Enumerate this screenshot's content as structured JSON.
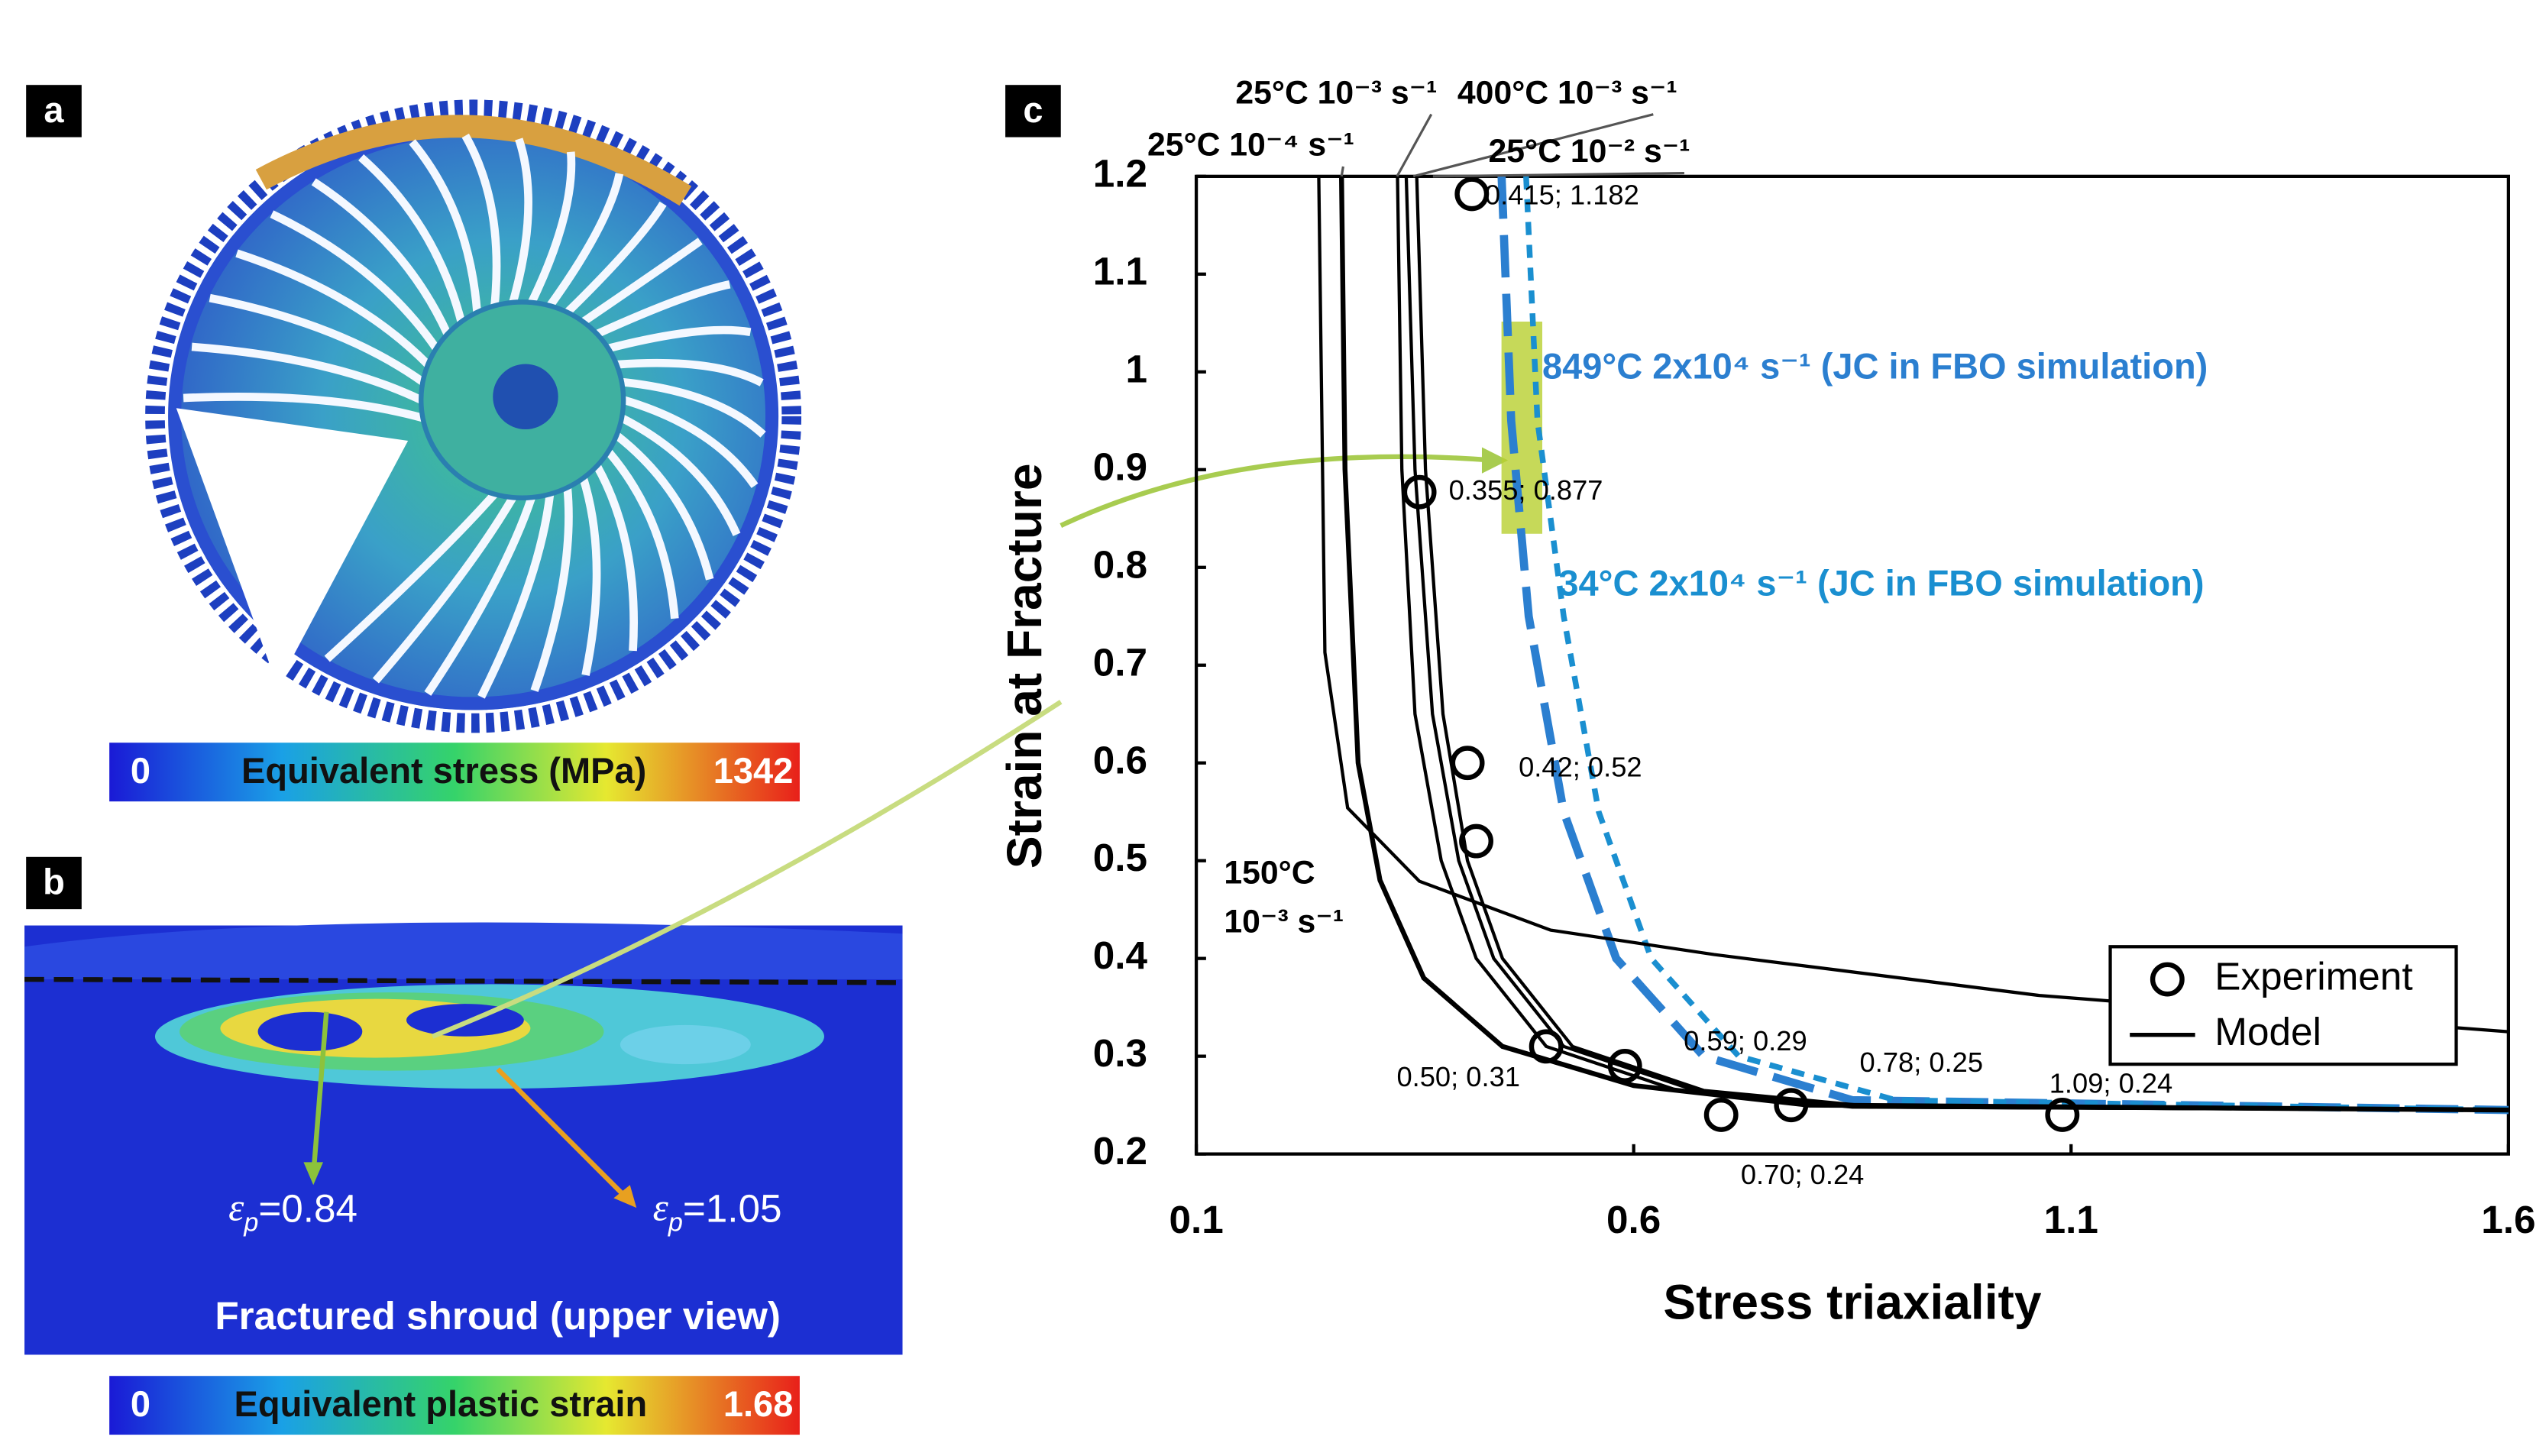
{
  "panel_labels": {
    "a": "a",
    "b": "b",
    "c": "c"
  },
  "panel_a": {
    "colorbar": {
      "min": 0,
      "max": 1342,
      "title": "Equivalent stress (MPa)"
    }
  },
  "panel_b": {
    "caption": "Fractured shroud (upper view)",
    "annotations": [
      {
        "symbol": "ε",
        "subscript": "p",
        "text": "=0.84"
      },
      {
        "symbol": "ε",
        "subscript": "p",
        "text": "=1.05"
      }
    ],
    "colorbar": {
      "min": 0,
      "max": 1.68,
      "title": "Equivalent plastic strain"
    }
  },
  "chart_data": {
    "type": "scatter",
    "x_label": "Stress triaxiality",
    "y_label": "Strain at Fracture",
    "xlim": [
      0.1,
      1.6
    ],
    "ylim": [
      0.2,
      1.2
    ],
    "xticks": [
      0.1,
      0.6,
      1.1,
      1.6
    ],
    "yticks": [
      0.2,
      0.3,
      0.4,
      0.5,
      0.6,
      0.7,
      0.8,
      0.9,
      1,
      1.1,
      1.2
    ],
    "legend": "lower right",
    "series": [
      {
        "name": "Experiment",
        "type": "scatter",
        "color": "#000000",
        "x": [
          0.415,
          0.355,
          0.41,
          0.42,
          0.5,
          0.59,
          0.7,
          0.78,
          1.09
        ],
        "values": [
          1.182,
          0.877,
          0.6,
          0.52,
          0.31,
          0.29,
          0.24,
          0.25,
          0.24
        ],
        "value_labels": [
          "0.415; 1.182",
          "0.355; 0.877",
          null,
          "0.42; 0.52",
          "0.50; 0.31",
          "0.59; 0.29",
          "0.70; 0.24",
          "0.78; 0.25",
          "1.09; 0.24"
        ]
      },
      {
        "name": "Model",
        "type": "line",
        "color": "#000000",
        "curves": [
          {
            "label": [
              "25°C 10⁻⁴ s⁻¹"
            ],
            "x": [
              0.266,
              0.27,
              0.285,
              0.31,
              0.36,
              0.45,
              0.6,
              0.8,
              1.6
            ],
            "values": [
              1.2,
              0.9,
              0.6,
              0.48,
              0.38,
              0.31,
              0.27,
              0.25,
              0.245
            ]
          },
          {
            "label": [
              "25°C 10⁻³ s⁻¹"
            ],
            "x": [
              0.33,
              0.335,
              0.35,
              0.38,
              0.42,
              0.5,
              0.65,
              0.85,
              1.6
            ],
            "values": [
              1.2,
              0.9,
              0.65,
              0.5,
              0.4,
              0.31,
              0.265,
              0.248,
              0.245
            ]
          },
          {
            "label": [
              "400°C 10⁻³ s⁻¹"
            ],
            "x": [
              0.34,
              0.35,
              0.37,
              0.4,
              0.44,
              0.52,
              0.67,
              0.87,
              1.6
            ],
            "values": [
              1.2,
              0.9,
              0.65,
              0.5,
              0.4,
              0.31,
              0.265,
              0.248,
              0.245
            ]
          },
          {
            "label": [
              "25°C 10⁻² s⁻¹"
            ],
            "x": [
              0.352,
              0.362,
              0.382,
              0.41,
              0.45,
              0.53,
              0.68,
              0.88,
              1.6
            ],
            "values": [
              1.2,
              0.9,
              0.65,
              0.5,
              0.4,
              0.31,
              0.265,
              0.248,
              0.245
            ]
          },
          {
            "label": [
              "150°C",
              "10⁻³ s⁻¹"
            ],
            "x": [
              0.24,
              0.247,
              0.273,
              0.355,
              0.505,
              0.692,
              1.065,
              1.6
            ],
            "values": [
              1.2,
              0.713,
              0.554,
              0.479,
              0.429,
              0.404,
              0.362,
              0.325
            ]
          }
        ]
      }
    ],
    "jc_curves": [
      {
        "label": "849°C 2x10⁴ s⁻¹ (JC in FBO simulation)",
        "color": "#2b7fd0",
        "x": [
          0.449,
          0.46,
          0.48,
          0.52,
          0.58,
          0.68,
          0.85,
          1.6
        ],
        "values": [
          1.2,
          0.95,
          0.75,
          0.55,
          0.4,
          0.3,
          0.255,
          0.245
        ]
      },
      {
        "label": "34°C 2x10⁴ s⁻¹ (JC in FBO simulation)",
        "color": "#1a8fd0",
        "x": [
          0.477,
          0.49,
          0.52,
          0.56,
          0.62,
          0.72,
          0.9,
          1.6
        ],
        "values": [
          1.2,
          0.95,
          0.75,
          0.55,
          0.4,
          0.3,
          0.255,
          0.245
        ]
      }
    ]
  }
}
